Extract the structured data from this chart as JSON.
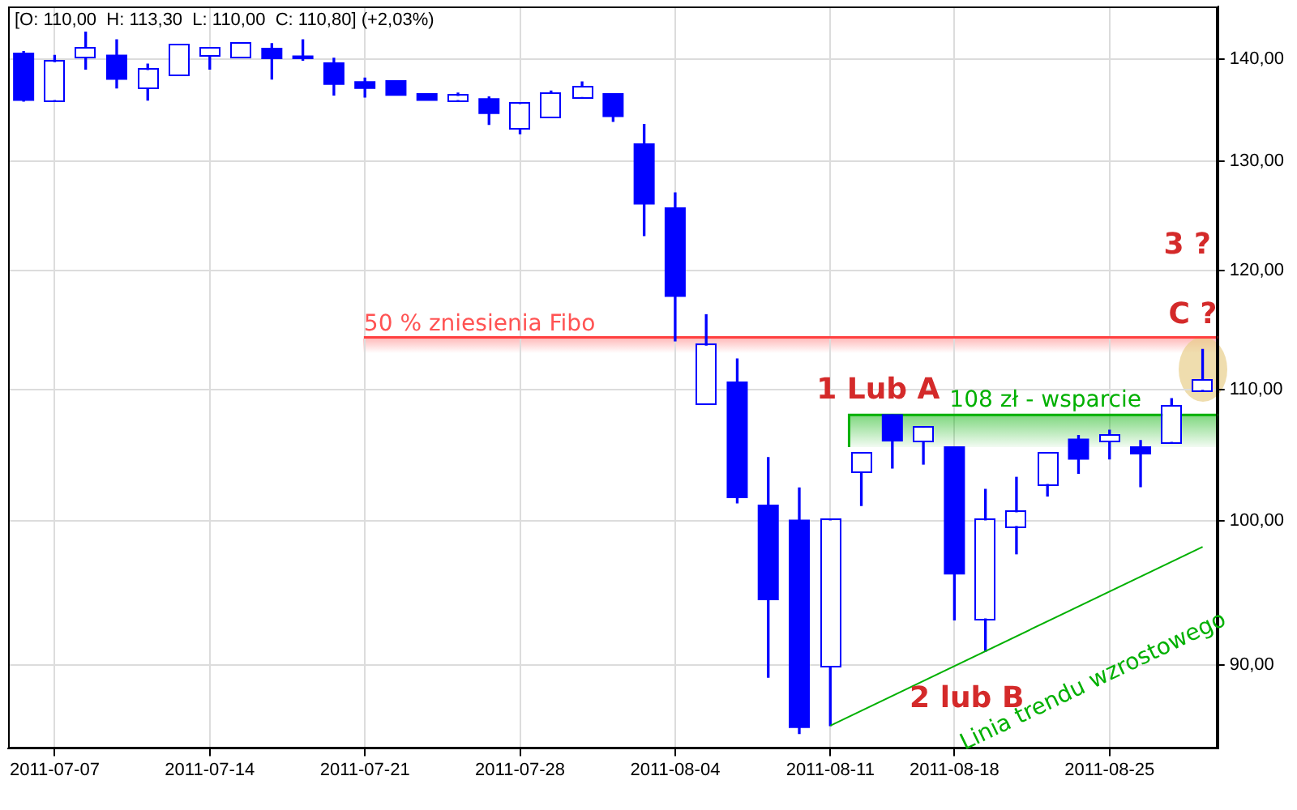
{
  "chart_data": {
    "type": "candlestick",
    "title": "[O: 110,00  H: 113,30  L: 110,00  C: 110,80] (+2,03%)",
    "categories": [
      null,
      "2011-07-07",
      null,
      null,
      null,
      null,
      "2011-07-14",
      null,
      null,
      null,
      null,
      "2011-07-21",
      null,
      null,
      null,
      null,
      "2011-07-28",
      null,
      null,
      null,
      null,
      "2011-08-04",
      null,
      null,
      null,
      null,
      "2011-08-11",
      null,
      null,
      null,
      "2011-08-18",
      null,
      null,
      null,
      null,
      "2011-08-25",
      null,
      null,
      null
    ],
    "ohlc": [
      [
        140.6,
        140.8,
        135.8,
        135.9
      ],
      [
        135.9,
        140.4,
        135.9,
        139.7
      ],
      [
        140.2,
        142.8,
        139.0,
        141.1
      ],
      [
        140.4,
        142.0,
        137.1,
        138.0
      ],
      [
        137.1,
        139.5,
        135.9,
        138.9
      ],
      [
        138.4,
        141.4,
        138.4,
        141.4
      ],
      [
        140.4,
        141.1,
        139.0,
        141.1
      ],
      [
        140.2,
        141.8,
        140.1,
        141.6
      ],
      [
        141.1,
        141.6,
        138.0,
        140.1
      ],
      [
        140.3,
        142.0,
        139.9,
        140.1
      ],
      [
        139.6,
        140.1,
        136.4,
        137.5
      ],
      [
        137.7,
        138.1,
        136.2,
        137.1
      ],
      [
        137.8,
        137.8,
        136.4,
        136.4
      ],
      [
        136.5,
        136.5,
        135.9,
        135.9
      ],
      [
        135.9,
        136.6,
        135.9,
        136.3
      ],
      [
        136.0,
        136.2,
        133.5,
        134.6
      ],
      [
        133.1,
        135.5,
        132.6,
        135.5
      ],
      [
        134.2,
        136.8,
        134.2,
        136.5
      ],
      [
        136.2,
        137.7,
        136.2,
        137.2
      ],
      [
        136.5,
        136.5,
        133.8,
        134.3
      ],
      [
        131.6,
        133.5,
        123.1,
        126.0
      ],
      [
        125.6,
        127.0,
        114.0,
        117.8
      ],
      [
        108.9,
        116.2,
        108.9,
        113.6
      ],
      [
        110.6,
        112.5,
        101.3,
        101.7
      ],
      [
        101.1,
        104.7,
        89.2,
        94.4
      ],
      [
        100.0,
        102.4,
        85.6,
        86.0
      ],
      [
        89.9,
        100.0,
        86.1,
        100.0
      ],
      [
        103.6,
        105.0,
        101.1,
        105.0
      ],
      [
        108.0,
        108.0,
        103.9,
        106.0
      ],
      [
        106.0,
        107.0,
        104.2,
        107.0
      ],
      [
        105.5,
        105.5,
        93.0,
        96.2
      ],
      [
        93.1,
        102.3,
        90.9,
        100.0
      ],
      [
        99.6,
        103.2,
        97.6,
        100.6
      ],
      [
        102.7,
        105.0,
        101.8,
        105.0
      ],
      [
        106.1,
        106.4,
        103.5,
        104.6
      ],
      [
        106.0,
        106.8,
        104.6,
        106.4
      ],
      [
        105.5,
        106.0,
        102.5,
        105.0
      ],
      [
        105.9,
        109.3,
        105.9,
        108.7
      ],
      [
        110.0,
        113.3,
        110.0,
        110.8
      ]
    ],
    "color": "#0000ff",
    "colors": [
      "#0000ff",
      "#ffffff",
      "#ffffff",
      "#0000ff",
      "#ffffff",
      "#ffffff",
      "#ffffff",
      "#ffffff",
      "#0000ff",
      "#0000ff",
      "#0000ff",
      "#0000ff",
      "#0000ff",
      "#0000ff",
      "#ffffff",
      "#0000ff",
      "#ffffff",
      "#ffffff",
      "#ffffff",
      "#0000ff",
      "#0000ff",
      "#0000ff",
      "#ffffff",
      "#0000ff",
      "#0000ff",
      "#0000ff",
      "#ffffff",
      "#ffffff",
      "#0000ff",
      "#ffffff",
      "#0000ff",
      "#ffffff",
      "#ffffff",
      "#ffffff",
      "#0000ff",
      "#ffffff",
      "#0000ff",
      "#ffffff",
      "#ffffff"
    ],
    "series": [
      {
        "name": "Linia trendu wzrostowego",
        "type": "line",
        "color": "#00b000",
        "values": [
          null,
          null,
          null,
          null,
          null,
          null,
          null,
          null,
          null,
          null,
          null,
          null,
          null,
          null,
          null,
          null,
          null,
          null,
          null,
          null,
          null,
          null,
          null,
          null,
          null,
          null,
          86.1,
          null,
          null,
          null,
          null,
          null,
          null,
          null,
          null,
          null,
          null,
          null,
          98.1
        ]
      }
    ],
    "ylim": [
      84.7,
      145.5
    ],
    "yticks": [
      {
        "value": 90,
        "label": "90,00"
      },
      {
        "value": 100,
        "label": "100,00"
      },
      {
        "value": 110,
        "label": "110,00"
      },
      {
        "value": 120,
        "label": "120,00"
      },
      {
        "value": 130,
        "label": "130,00"
      },
      {
        "value": 140,
        "label": "140,00"
      }
    ],
    "log": true,
    "grid": true,
    "ref_lines": [
      {
        "axis": "y",
        "value": 114.3,
        "label": "50 % zniesienia Fibo",
        "color": "#ff4040"
      }
    ],
    "bands": [
      {
        "axis": "y",
        "from": 105.5,
        "to": 108,
        "label": "108 zł - wsparcie",
        "color": "#00b000"
      }
    ],
    "annotations": [
      "1 Lub A",
      "2 lub B",
      "C ?",
      "3 ?"
    ]
  }
}
